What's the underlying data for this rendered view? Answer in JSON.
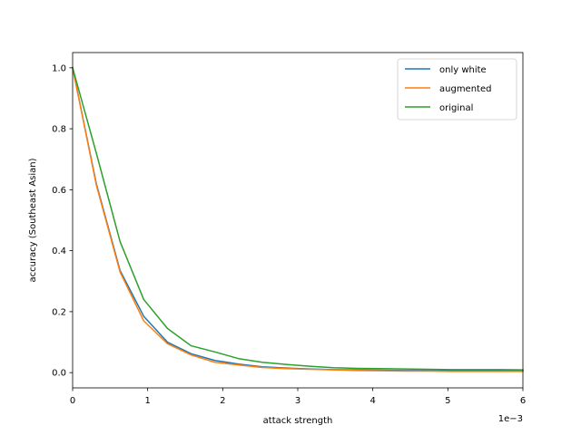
{
  "chart_data": {
    "type": "line",
    "title": "",
    "xlabel": "attack strength",
    "ylabel": "accuracy (Southeast Asian)",
    "x_offset_text": "1e−3",
    "xlim": [
      0,
      6
    ],
    "ylim": [
      -0.05,
      1.05
    ],
    "grid": false,
    "legend_position": "top-right",
    "x_ticks": [
      0,
      1,
      2,
      3,
      4,
      5,
      6
    ],
    "x_tick_labels": [
      "0",
      "1",
      "2",
      "3",
      "4",
      "5",
      "6"
    ],
    "y_ticks": [
      0.0,
      0.2,
      0.4,
      0.6,
      0.8,
      1.0
    ],
    "y_tick_labels": [
      "0.0",
      "0.2",
      "0.4",
      "0.6",
      "0.8",
      "1.0"
    ],
    "x": [
      0,
      0.316,
      0.632,
      0.947,
      1.263,
      1.579,
      1.895,
      2.211,
      2.526,
      2.842,
      3.158,
      3.474,
      3.789,
      4.105,
      4.421,
      4.737,
      5.053,
      5.368,
      5.684,
      6.0
    ],
    "series": [
      {
        "name": "only white",
        "color": "#1f77b4",
        "values": [
          1.0,
          0.62,
          0.335,
          0.185,
          0.1,
          0.062,
          0.04,
          0.028,
          0.019,
          0.015,
          0.012,
          0.01,
          0.009,
          0.008,
          0.007,
          0.007,
          0.006,
          0.006,
          0.006,
          0.006
        ]
      },
      {
        "name": "augmented",
        "color": "#ff7f0e",
        "values": [
          1.0,
          0.615,
          0.33,
          0.17,
          0.095,
          0.058,
          0.034,
          0.025,
          0.017,
          0.013,
          0.011,
          0.009,
          0.007,
          0.006,
          0.005,
          0.005,
          0.004,
          0.004,
          0.004,
          0.004
        ]
      },
      {
        "name": "original",
        "color": "#2ca02c",
        "values": [
          1.0,
          0.72,
          0.43,
          0.24,
          0.145,
          0.088,
          0.068,
          0.046,
          0.034,
          0.027,
          0.021,
          0.016,
          0.014,
          0.013,
          0.012,
          0.011,
          0.01,
          0.01,
          0.01,
          0.009
        ]
      }
    ]
  }
}
